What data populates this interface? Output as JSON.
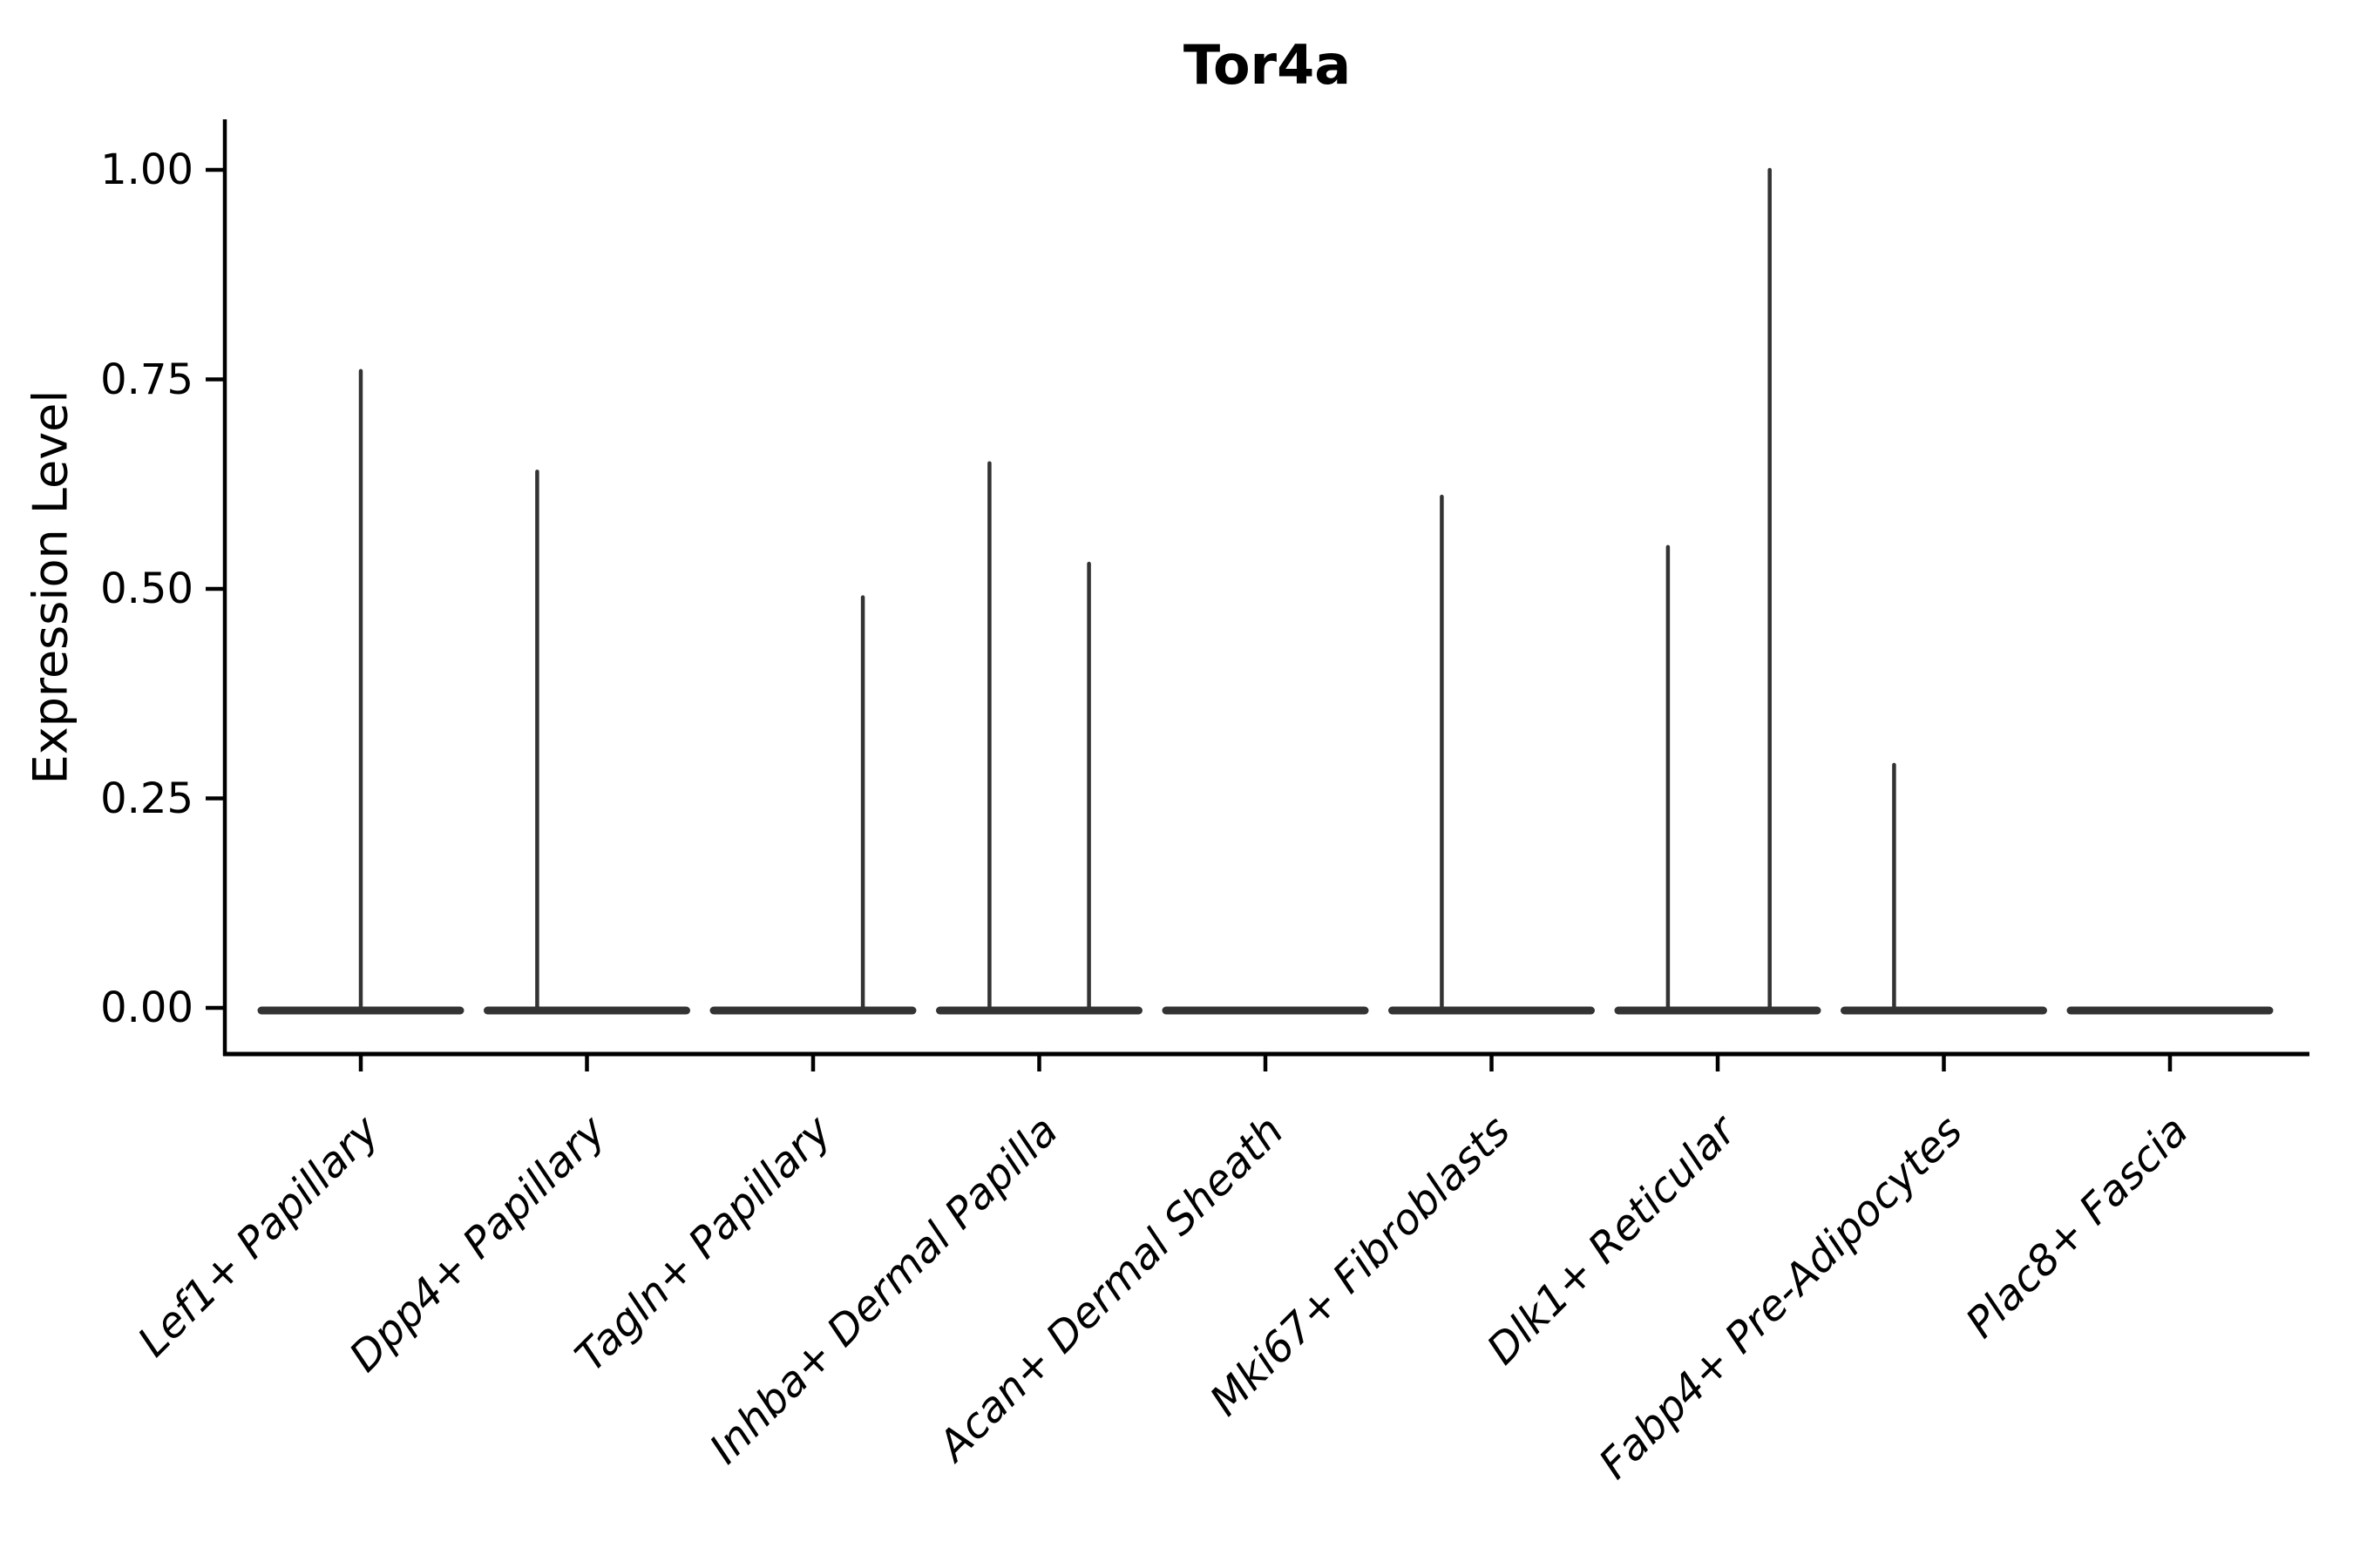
{
  "figure": {
    "background": "#ffffff"
  },
  "chart_data": {
    "type": "violin",
    "title": "Tor4a",
    "ylabel": "Expression Level",
    "xlabel": "",
    "ylim": [
      0,
      1.05
    ],
    "grid": false,
    "legend": null,
    "ytick_labels": [
      "0.00",
      "0.25",
      "0.50",
      "0.75",
      "1.00"
    ],
    "ytick_values": [
      0,
      0.25,
      0.5,
      0.75,
      1.0
    ],
    "categories": [
      "Lef1+ Papillary",
      "Dpp4+ Papillary",
      "Tagln+ Papillary",
      "Inhba+ Dermal Papilla",
      "Acan+ Dermal Sheath",
      "Mki67+ Fibroblasts",
      "Dlk1+ Reticular",
      "Fabp4+ Pre-Adipocytes",
      "Plac8+ Fascia"
    ],
    "violins": [
      {
        "category": "Lef1+ Papillary",
        "baseline_value": 0,
        "spikes": [
          {
            "offset": 0.0,
            "max": 0.76
          }
        ]
      },
      {
        "category": "Dpp4+ Papillary",
        "baseline_value": 0,
        "spikes": [
          {
            "offset": -0.22,
            "max": 0.64
          }
        ]
      },
      {
        "category": "Tagln+ Papillary",
        "baseline_value": 0,
        "spikes": [
          {
            "offset": 0.22,
            "max": 0.49
          }
        ]
      },
      {
        "category": "Inhba+ Dermal Papilla",
        "baseline_value": 0,
        "spikes": [
          {
            "offset": -0.22,
            "max": 0.65
          },
          {
            "offset": 0.22,
            "max": 0.53
          }
        ]
      },
      {
        "category": "Acan+ Dermal Sheath",
        "baseline_value": 0,
        "spikes": []
      },
      {
        "category": "Mki67+ Fibroblasts",
        "baseline_value": 0,
        "spikes": [
          {
            "offset": -0.22,
            "max": 0.61
          }
        ]
      },
      {
        "category": "Dlk1+ Reticular",
        "baseline_value": 0,
        "spikes": [
          {
            "offset": -0.22,
            "max": 0.55
          },
          {
            "offset": 0.23,
            "max": 1.0
          }
        ]
      },
      {
        "category": "Fabp4+ Pre-Adipocytes",
        "baseline_value": 0,
        "spikes": [
          {
            "offset": -0.22,
            "max": 0.29
          }
        ]
      },
      {
        "category": "Plac8+ Fascia",
        "baseline_value": 0,
        "spikes": []
      }
    ],
    "colors": {
      "violin": "#333333",
      "axis": "#000000",
      "text": "#000000"
    }
  }
}
